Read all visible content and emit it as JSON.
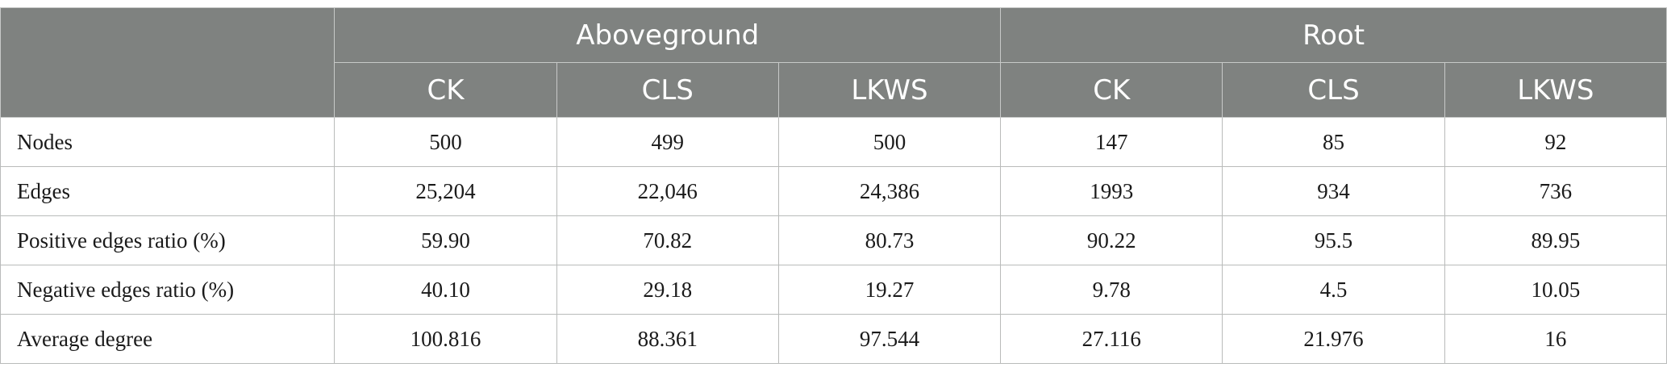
{
  "table": {
    "group_headers": [
      {
        "label": ""
      },
      {
        "label": "Aboveground"
      },
      {
        "label": "Root"
      }
    ],
    "sub_headers": [
      "CK",
      "CLS",
      "LKWS",
      "CK",
      "CLS",
      "LKWS"
    ],
    "rows": [
      {
        "label": "Nodes",
        "values": [
          "500",
          "499",
          "500",
          "147",
          "85",
          "92"
        ]
      },
      {
        "label": "Edges",
        "values": [
          "25,204",
          "22,046",
          "24,386",
          "1993",
          "934",
          "736"
        ]
      },
      {
        "label": "Positive edges ratio (%)",
        "values": [
          "59.90",
          "70.82",
          "80.73",
          "90.22",
          "95.5",
          "89.95"
        ]
      },
      {
        "label": "Negative edges ratio (%)",
        "values": [
          "40.10",
          "29.18",
          "19.27",
          "9.78",
          "4.5",
          "10.05"
        ]
      },
      {
        "label": "Average degree",
        "values": [
          "100.816",
          "88.361",
          "97.544",
          "27.116",
          "21.976",
          "16"
        ]
      }
    ]
  },
  "colors": {
    "header_bg": "#7f8280",
    "header_text": "#ffffff",
    "border": "#b9bbba"
  }
}
